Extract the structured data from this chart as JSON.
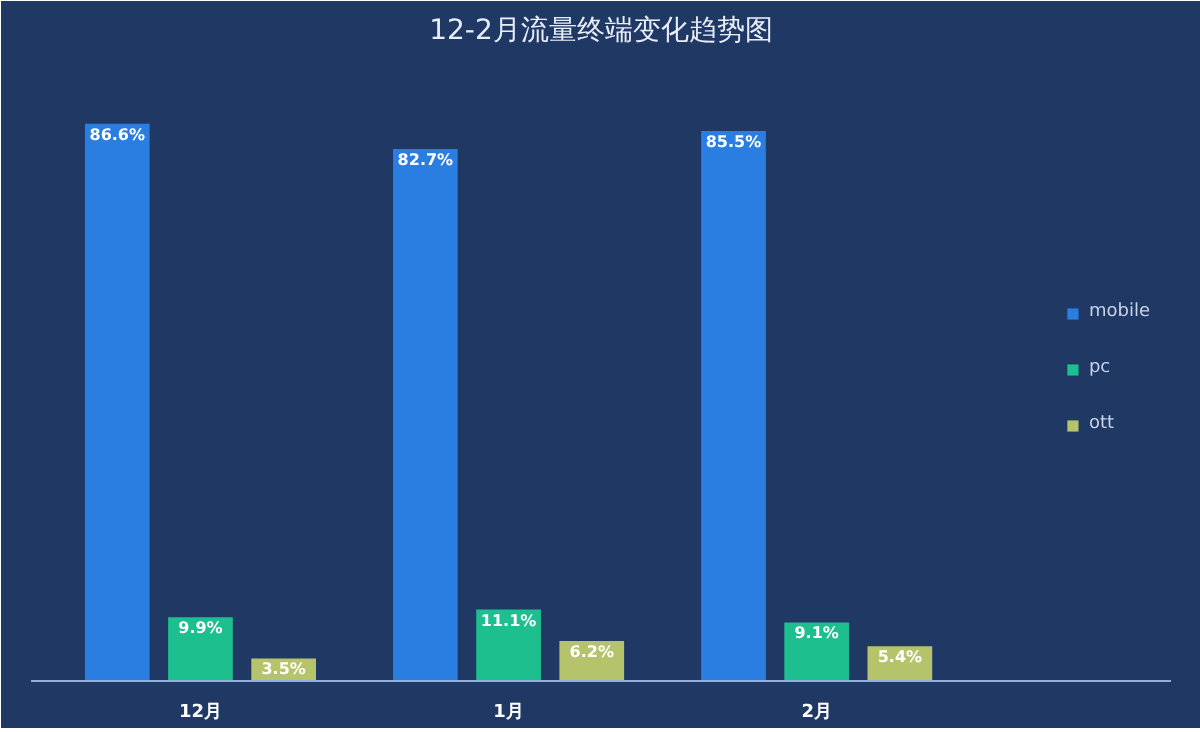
{
  "chart_data": {
    "type": "bar",
    "title": "12-2月流量终端变化趋势图",
    "categories": [
      "12月",
      "1月",
      "2月"
    ],
    "series": [
      {
        "name": "mobile",
        "color": "#2a7de1",
        "values": [
          86.6,
          82.7,
          85.5
        ],
        "value_labels": [
          "86.6%",
          "82.7%",
          "85.5%"
        ]
      },
      {
        "name": "pc",
        "color": "#1dbf8e",
        "values": [
          9.9,
          11.1,
          9.1
        ],
        "value_labels": [
          "9.9%",
          "11.1%",
          "9.1%"
        ]
      },
      {
        "name": "ott",
        "color": "#b5c46a",
        "values": [
          3.5,
          6.2,
          5.4
        ],
        "value_labels": [
          "3.5%",
          "6.2%",
          "5.4%"
        ]
      }
    ],
    "legend": "right",
    "grid": false
  }
}
